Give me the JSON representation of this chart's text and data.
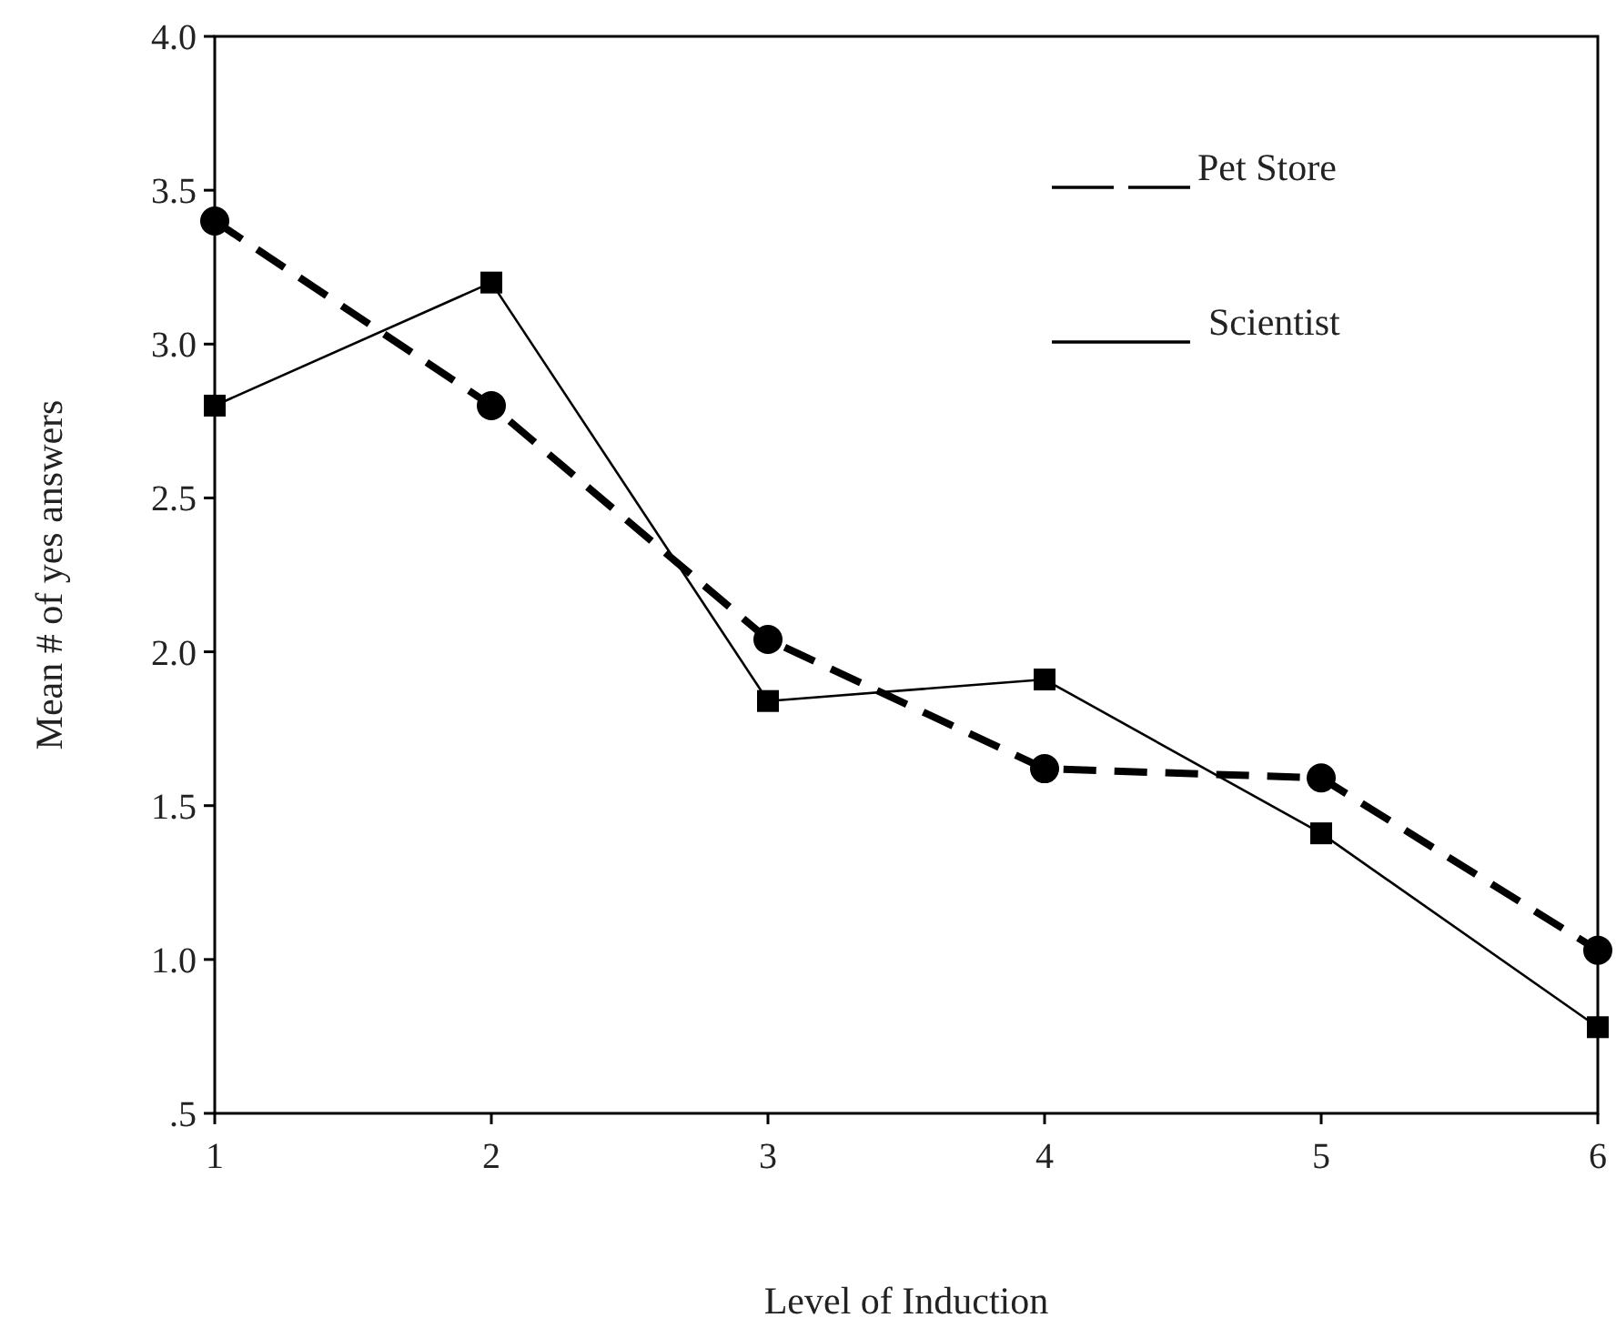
{
  "chart_data": {
    "type": "line",
    "xlabel": "Level of Induction",
    "ylabel": "Mean # of yes answers",
    "x": [
      1,
      2,
      3,
      4,
      5,
      6
    ],
    "series": [
      {
        "name": "Pet Store",
        "color": "#000000",
        "values": [
          3.4,
          2.8,
          2.04,
          1.62,
          1.59,
          1.03
        ],
        "marker": "circle",
        "line_style": "dashed"
      },
      {
        "name": "Scientist",
        "color": "#000000",
        "values": [
          2.8,
          3.2,
          1.84,
          1.91,
          1.41,
          0.78
        ],
        "marker": "square",
        "line_style": "solid"
      }
    ],
    "xlim": [
      1,
      6
    ],
    "xticks": [
      1,
      2,
      3,
      4,
      5,
      6
    ],
    "ylim": [
      0.5,
      4
    ],
    "yticks": [
      {
        "value": 0.5,
        "label": ".5"
      },
      {
        "value": 1,
        "label": "1.0"
      },
      {
        "value": 1.5,
        "label": "1.5"
      },
      {
        "value": 2,
        "label": "2.0"
      },
      {
        "value": 2.5,
        "label": "2.5"
      },
      {
        "value": 3,
        "label": "3.0"
      },
      {
        "value": 3.5,
        "label": "3.5"
      },
      {
        "value": 4,
        "label": "4.0"
      }
    ],
    "grid": false,
    "legend": "top right"
  }
}
